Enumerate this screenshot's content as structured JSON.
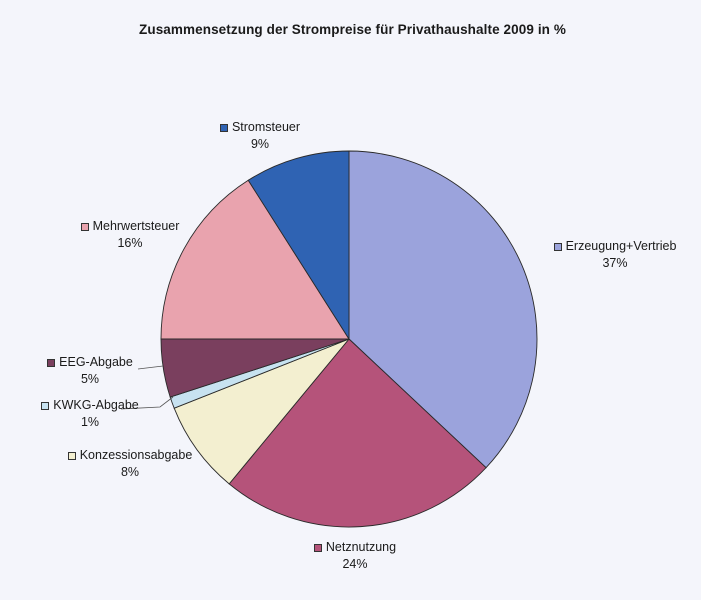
{
  "chart_data": {
    "type": "pie",
    "title": "Zusammensetzung der Strompreise für Privathaushalte 2009 in %",
    "start_angle_deg": 0,
    "direction": "clockwise",
    "slices": [
      {
        "label": "Erzeugung+Vertrieb",
        "value": 37,
        "display": "37%",
        "color": "#9ba3dc"
      },
      {
        "label": "Netznutzung",
        "value": 24,
        "display": "24%",
        "color": "#b5537a"
      },
      {
        "label": "Konzessionsabgabe",
        "value": 8,
        "display": "8%",
        "color": "#f3efd0"
      },
      {
        "label": "KWKG-Abgabe",
        "value": 1,
        "display": "1%",
        "color": "#c7e2f0"
      },
      {
        "label": "EEG-Abgabe",
        "value": 5,
        "display": "5%",
        "color": "#7a3f5e"
      },
      {
        "label": "Mehrwertsteuer",
        "value": 16,
        "display": "16%",
        "color": "#e9a3ae"
      },
      {
        "label": "Stromsteuer",
        "value": 9,
        "display": "9%",
        "color": "#2f63b3"
      }
    ],
    "legend_position": "data-labels-outside"
  }
}
